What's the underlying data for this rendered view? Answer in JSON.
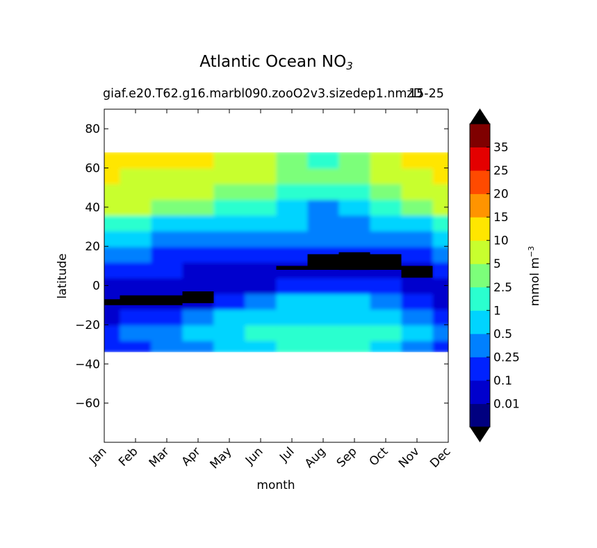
{
  "title": "Atlantic Ocean NO",
  "title_subscript": "3",
  "subtitle_left": "giaf.e20.T62.g16.marbl090.zooO2v3.sizedep1.nmzD",
  "subtitle_right": "15-25",
  "colorbar": {
    "unit_label": "mmol m",
    "unit_exp": "−3",
    "level_labels": [
      "0.01",
      "0.1",
      "0.25",
      "0.5",
      "1",
      "2.5",
      "5",
      "10",
      "15",
      "20",
      "25",
      "35"
    ],
    "colors": [
      "#000080",
      "#0000cd",
      "#0022ff",
      "#0080ff",
      "#00d4ff",
      "#2affcf",
      "#7cff7a",
      "#c8ff2e",
      "#ffe600",
      "#ff9400",
      "#ff4a00",
      "#e40000",
      "#7f0000"
    ],
    "extend": "both"
  },
  "chart_data": {
    "type": "heatmap",
    "title": "Atlantic Ocean NO3",
    "subtitle": "giaf.e20.T62.g16.marbl090.zooO2v3.sizedep1.nmzD 15-25",
    "xlabel": "month",
    "ylabel": "latitude",
    "x": [
      "Jan",
      "Feb",
      "Mar",
      "Apr",
      "May",
      "Jun",
      "Jul",
      "Aug",
      "Sep",
      "Oct",
      "Nov",
      "Dec"
    ],
    "ylim": [
      -80,
      90
    ],
    "yticks": [
      "−60",
      "−40",
      "−20",
      "0",
      "20",
      "40",
      "60",
      "80"
    ],
    "ytick_values": [
      -60,
      -40,
      -20,
      0,
      20,
      40,
      60,
      80
    ],
    "data_lat_range": [
      -34,
      68
    ],
    "contour_levels": [
      0.01,
      0.1,
      0.25,
      0.5,
      1,
      2.5,
      5,
      10,
      15,
      20,
      25,
      35
    ],
    "bands": [
      {
        "lat": [
          -34,
          -28
        ],
        "values": [
          0.1,
          0.1,
          0.25,
          0.25,
          0.5,
          0.5,
          1,
          1,
          1,
          0.5,
          0.25,
          0.1
        ]
      },
      {
        "lat": [
          -28,
          -20
        ],
        "values": [
          0.1,
          0.25,
          0.25,
          0.5,
          0.5,
          1,
          1,
          1,
          1,
          1,
          0.5,
          0.25
        ]
      },
      {
        "lat": [
          -20,
          -12
        ],
        "values": [
          0.01,
          0.1,
          0.1,
          0.25,
          0.5,
          0.5,
          0.5,
          0.5,
          0.5,
          0.5,
          0.25,
          0.1
        ]
      },
      {
        "lat": [
          -12,
          -4
        ],
        "values": [
          0.01,
          0.01,
          0.01,
          0.01,
          0.1,
          0.25,
          0.5,
          0.5,
          0.5,
          0.25,
          0.1,
          0.01
        ]
      },
      {
        "lat": [
          -4,
          4
        ],
        "values": [
          0.01,
          0.01,
          0.01,
          0.01,
          0.01,
          0.01,
          0.1,
          0.1,
          0.1,
          0.1,
          0.01,
          0.01
        ]
      },
      {
        "lat": [
          4,
          12
        ],
        "values": [
          0.1,
          0.1,
          0.1,
          0.01,
          0.01,
          0.01,
          0.01,
          0.01,
          0.01,
          0.01,
          0.01,
          0.1
        ]
      },
      {
        "lat": [
          12,
          20
        ],
        "values": [
          0.25,
          0.25,
          0.1,
          0.1,
          0.1,
          0.1,
          0.1,
          0.1,
          0.1,
          0.1,
          0.1,
          0.25
        ]
      },
      {
        "lat": [
          20,
          28
        ],
        "values": [
          0.5,
          0.5,
          0.25,
          0.25,
          0.25,
          0.25,
          0.25,
          0.25,
          0.25,
          0.25,
          0.25,
          0.5
        ]
      },
      {
        "lat": [
          28,
          36
        ],
        "values": [
          1,
          1,
          0.5,
          0.5,
          0.5,
          0.5,
          0.5,
          0.25,
          0.25,
          0.5,
          0.5,
          1
        ]
      },
      {
        "lat": [
          36,
          44
        ],
        "values": [
          5,
          5,
          2.5,
          2.5,
          1,
          1,
          0.5,
          0.25,
          0.5,
          1,
          2.5,
          5
        ]
      },
      {
        "lat": [
          44,
          52
        ],
        "values": [
          5,
          5,
          5,
          5,
          2.5,
          2.5,
          1,
          1,
          1,
          2.5,
          5,
          5
        ]
      },
      {
        "lat": [
          52,
          60
        ],
        "values": [
          10,
          5,
          5,
          5,
          5,
          5,
          2.5,
          2.5,
          2.5,
          5,
          5,
          10
        ]
      },
      {
        "lat": [
          60,
          68
        ],
        "values": [
          10,
          10,
          10,
          10,
          5,
          5,
          2.5,
          1,
          2.5,
          5,
          10,
          10
        ]
      }
    ],
    "masked_cells": [
      {
        "month": "Jan",
        "lat": [
          -10,
          -7
        ]
      },
      {
        "month": "Feb",
        "lat": [
          -10,
          -5
        ]
      },
      {
        "month": "Mar",
        "lat": [
          -10,
          -5
        ]
      },
      {
        "month": "Apr",
        "lat": [
          -9,
          -3
        ]
      },
      {
        "month": "Jul",
        "lat": [
          8,
          10
        ]
      },
      {
        "month": "Aug",
        "lat": [
          8,
          16
        ]
      },
      {
        "month": "Sep",
        "lat": [
          8,
          17
        ]
      },
      {
        "month": "Oct",
        "lat": [
          8,
          16
        ]
      },
      {
        "month": "Nov",
        "lat": [
          4,
          10
        ]
      }
    ],
    "grid": false
  }
}
